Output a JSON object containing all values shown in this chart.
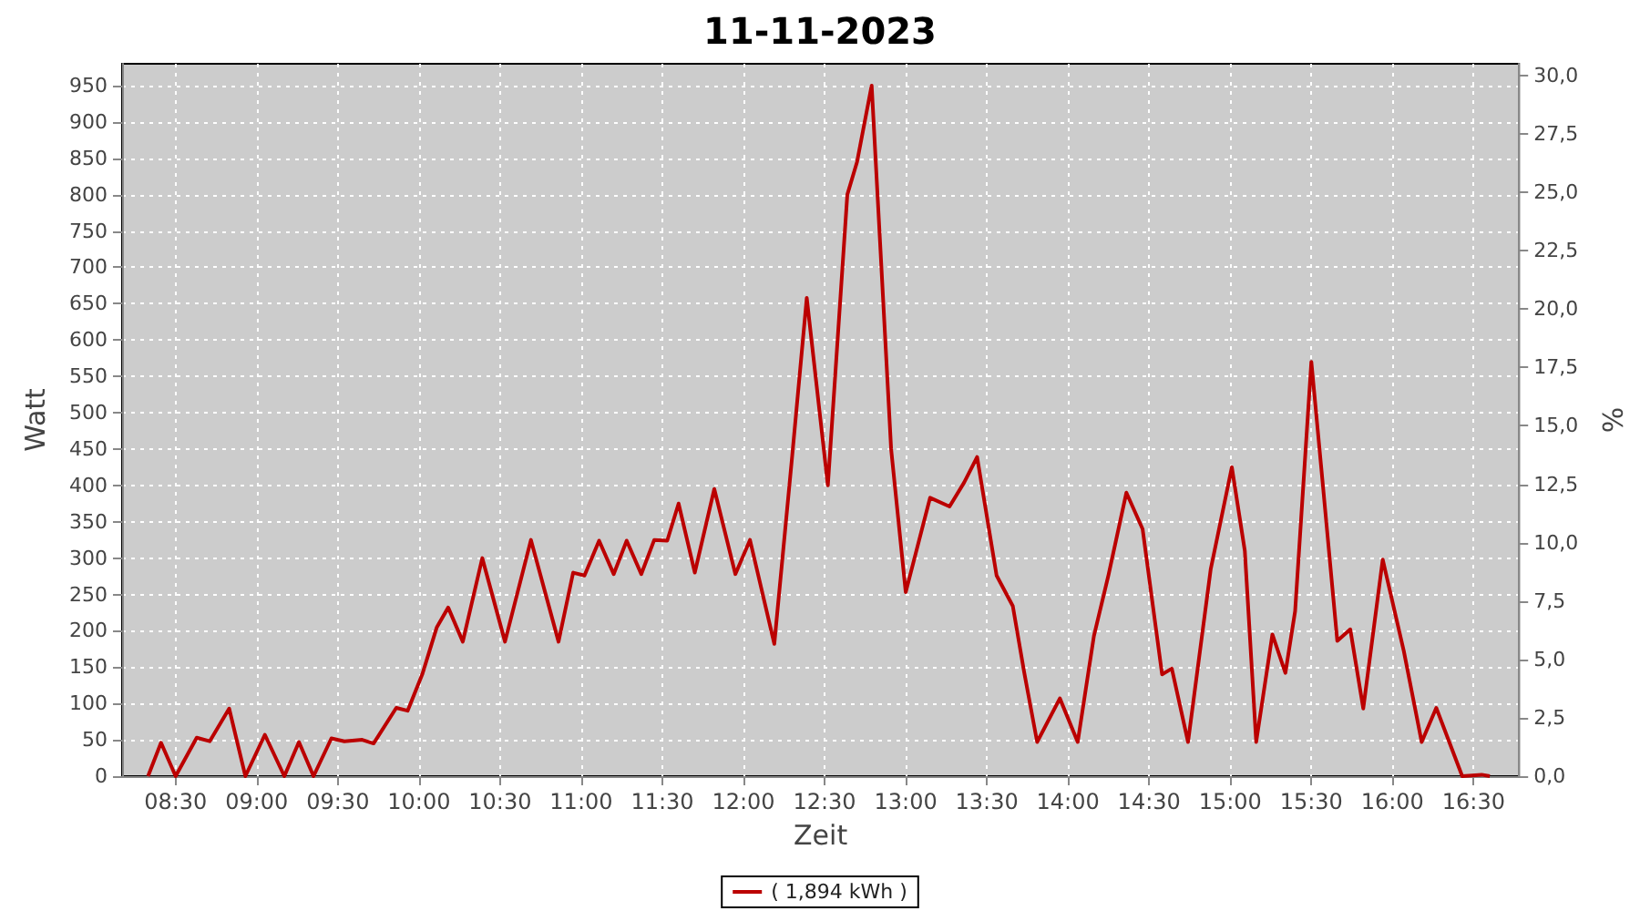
{
  "chart_data": {
    "type": "line",
    "title": "11-11-2023",
    "xlabel": "Zeit",
    "ylabel": "Watt",
    "y2label": "%",
    "x": [
      8.33,
      8.41,
      8.5,
      8.63,
      8.71,
      8.83,
      8.93,
      9.05,
      9.17,
      9.26,
      9.35,
      9.46,
      9.54,
      9.65,
      9.72,
      9.86,
      9.93,
      10.02,
      10.11,
      10.18,
      10.27,
      10.39,
      10.53,
      10.69,
      10.86,
      10.95,
      11.02,
      11.11,
      11.2,
      11.28,
      11.37,
      11.45,
      11.53,
      11.6,
      11.7,
      11.82,
      11.95,
      12.04,
      12.19,
      12.3,
      12.39,
      12.52,
      12.64,
      12.7,
      12.79,
      12.84,
      12.91,
      13.0,
      13.15,
      13.27,
      13.36,
      13.44,
      13.56,
      13.66,
      13.73,
      13.81,
      13.95,
      14.06,
      14.16,
      14.25,
      14.36,
      14.46,
      14.58,
      14.64,
      14.74,
      14.88,
      15.01,
      15.09,
      15.16,
      15.26,
      15.34,
      15.4,
      15.5,
      15.57,
      15.66,
      15.74,
      15.82,
      15.94,
      16.07,
      16.18,
      16.27,
      16.43,
      16.55,
      16.6
    ],
    "series": [
      {
        "name": "( 1,894 kWh )",
        "color": "#bb0000",
        "values": [
          0,
          46,
          0,
          53,
          48,
          93,
          0,
          57,
          0,
          47,
          0,
          52,
          48,
          50,
          45,
          94,
          90,
          140,
          205,
          232,
          185,
          300,
          185,
          325,
          185,
          280,
          276,
          324,
          278,
          324,
          278,
          325,
          324,
          375,
          280,
          395,
          278,
          325,
          182,
          440,
          658,
          400,
          800,
          845,
          950,
          742,
          450,
          253,
          383,
          371,
          404,
          439,
          276,
          234,
          143,
          47,
          107,
          47,
          193,
          277,
          390,
          340,
          140,
          148,
          47,
          285,
          425,
          310,
          47,
          195,
          142,
          227,
          570,
          403,
          186,
          202,
          93,
          298,
          172,
          47,
          94,
          0,
          2,
          0
        ]
      }
    ],
    "xlim": [
      8.17,
      16.78
    ],
    "xticks": [
      {
        "value": 8.5,
        "label": "08:30"
      },
      {
        "value": 9,
        "label": "09:00"
      },
      {
        "value": 9.5,
        "label": "09:30"
      },
      {
        "value": 10,
        "label": "10:00"
      },
      {
        "value": 10.5,
        "label": "10:30"
      },
      {
        "value": 11,
        "label": "11:00"
      },
      {
        "value": 11.5,
        "label": "11:30"
      },
      {
        "value": 12,
        "label": "12:00"
      },
      {
        "value": 12.5,
        "label": "12:30"
      },
      {
        "value": 13,
        "label": "13:00"
      },
      {
        "value": 13.5,
        "label": "13:30"
      },
      {
        "value": 14,
        "label": "14:00"
      },
      {
        "value": 14.5,
        "label": "14:30"
      },
      {
        "value": 15,
        "label": "15:00"
      },
      {
        "value": 15.5,
        "label": "15:30"
      },
      {
        "value": 16,
        "label": "16:00"
      },
      {
        "value": 16.5,
        "label": "16:30"
      }
    ],
    "ylim": [
      0,
      980
    ],
    "yticks": [
      0,
      50,
      100,
      150,
      200,
      250,
      300,
      350,
      400,
      450,
      500,
      550,
      600,
      650,
      700,
      750,
      800,
      850,
      900,
      950
    ],
    "y2lim": [
      0,
      30.5
    ],
    "y2ticks": [
      {
        "value": 0,
        "label": "0,0"
      },
      {
        "value": 2.5,
        "label": "2,5"
      },
      {
        "value": 5,
        "label": "5,0"
      },
      {
        "value": 7.5,
        "label": "7,5"
      },
      {
        "value": 10,
        "label": "10,0"
      },
      {
        "value": 12.5,
        "label": "12,5"
      },
      {
        "value": 15,
        "label": "15,0"
      },
      {
        "value": 17.5,
        "label": "17,5"
      },
      {
        "value": 20,
        "label": "20,0"
      },
      {
        "value": 22.5,
        "label": "22,5"
      },
      {
        "value": 25,
        "label": "25,0"
      },
      {
        "value": 27.5,
        "label": "27,5"
      },
      {
        "value": 30,
        "label": "30,0"
      }
    ],
    "grid": true,
    "legend": "bottom",
    "marker": "none",
    "line_style": "solid"
  }
}
